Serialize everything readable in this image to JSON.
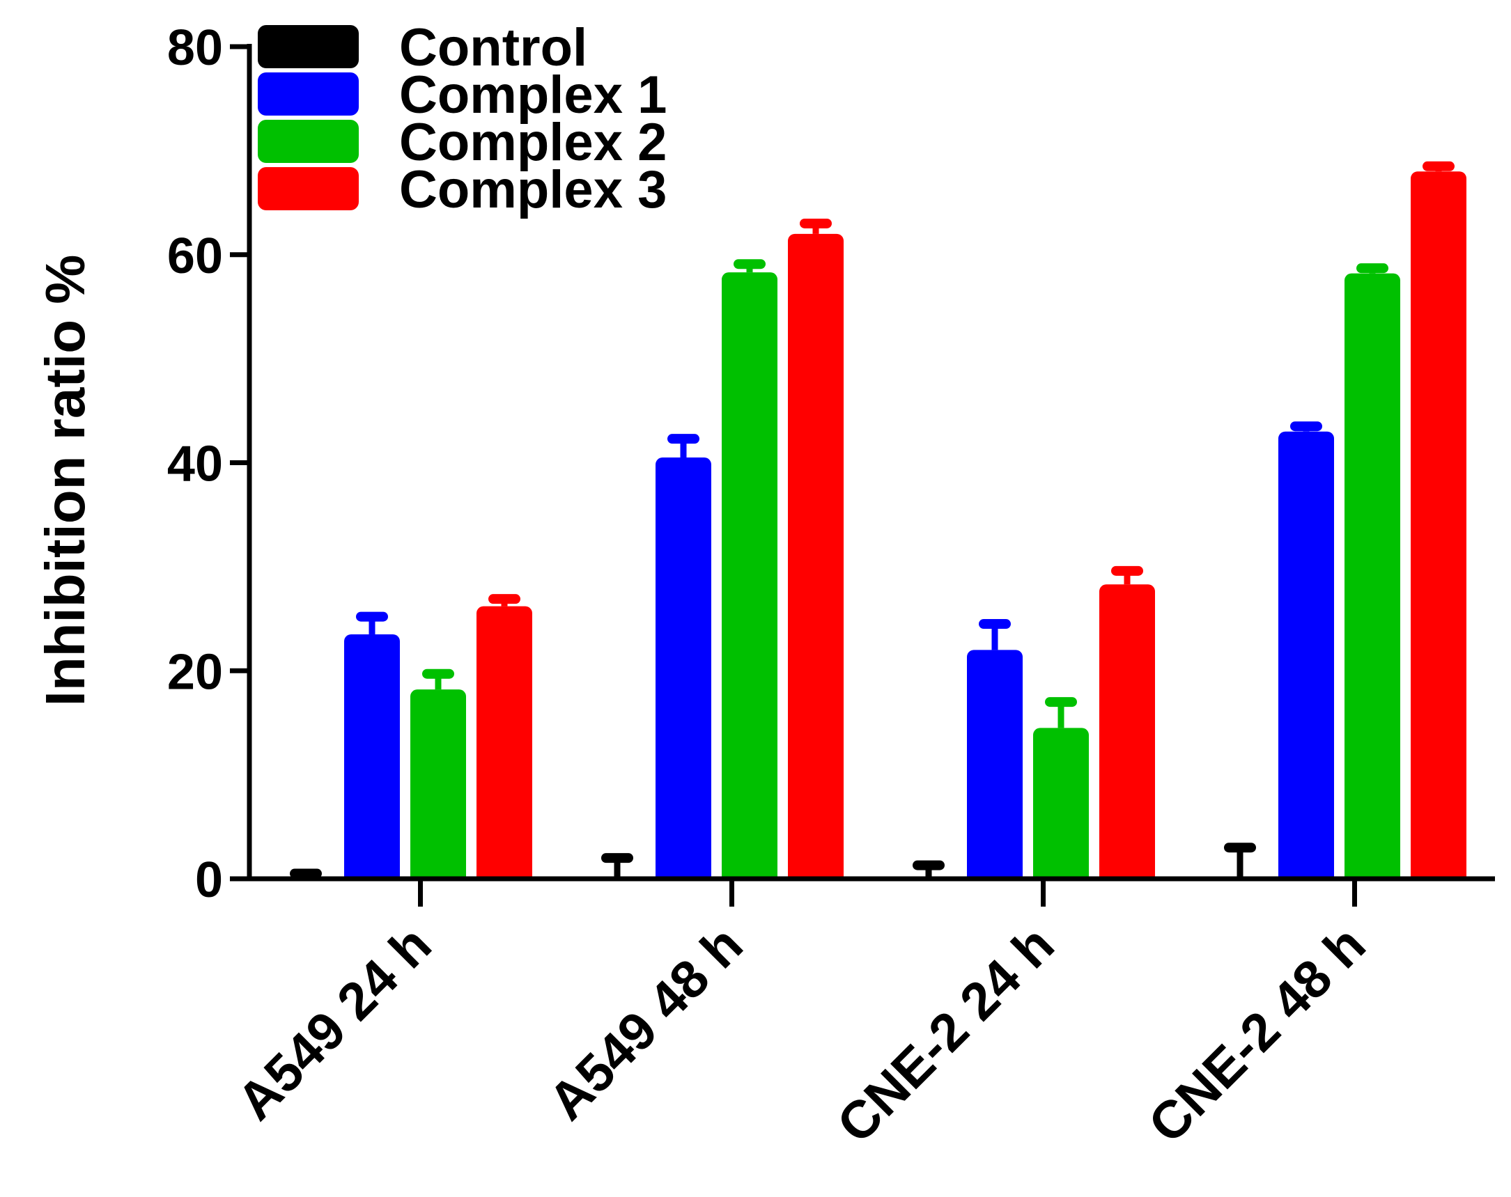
{
  "chart_data": {
    "type": "bar",
    "title": "",
    "xlabel": "",
    "ylabel": "Inhibition ratio %",
    "ylim": [
      0,
      80
    ],
    "yticks": [
      "0",
      "20",
      "40",
      "60",
      "80"
    ],
    "categories": [
      "A549 24 h",
      "A549 48 h",
      "CNE-2 24 h",
      "CNE-2 48 h"
    ],
    "legend_position": "top-left",
    "series": [
      {
        "name": "Control",
        "color": "#000000",
        "values": [
          0.0,
          0.0,
          0.0,
          0.0
        ],
        "errors": [
          0.5,
          2.0,
          1.3,
          3.0
        ]
      },
      {
        "name": "Complex 1",
        "color": "#0000ff",
        "values": [
          23.5,
          40.5,
          22.0,
          43.0
        ],
        "errors": [
          1.7,
          1.8,
          2.5,
          0.5
        ]
      },
      {
        "name": "Complex 2",
        "color": "#00c000",
        "values": [
          18.2,
          58.3,
          14.5,
          58.2
        ],
        "errors": [
          1.5,
          0.8,
          2.5,
          0.5
        ]
      },
      {
        "name": "Complex 3",
        "color": "#ff0000",
        "values": [
          26.2,
          62.0,
          28.3,
          68.0
        ],
        "errors": [
          0.7,
          1.0,
          1.3,
          0.5
        ]
      }
    ]
  }
}
